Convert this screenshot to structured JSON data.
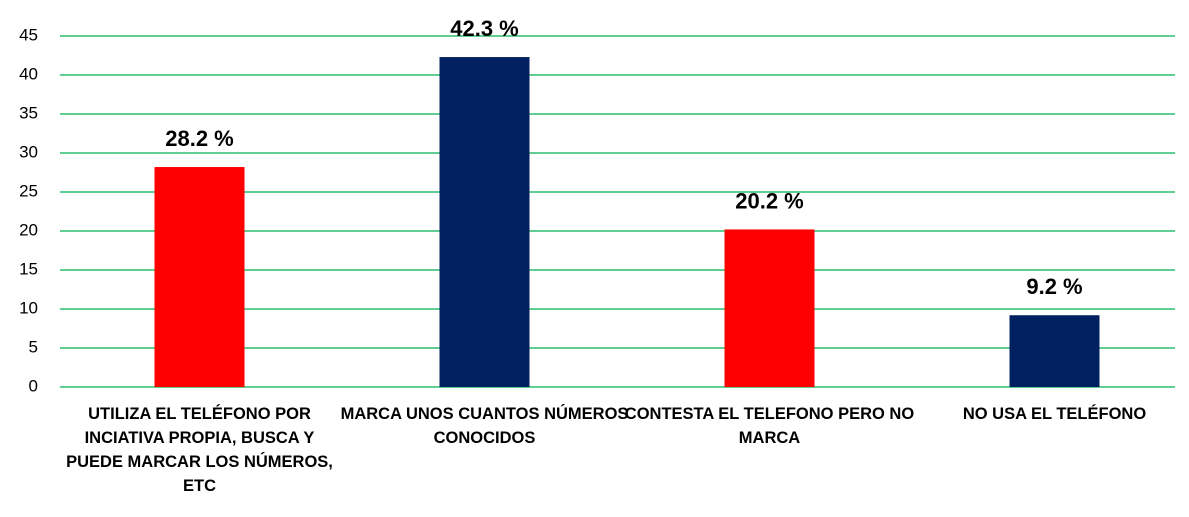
{
  "chart_data": {
    "type": "bar",
    "categories": [
      "UTILIZA EL TELÉFONO POR INCIATIVA PROPIA, BUSCA Y PUEDE MARCAR LOS NÚMEROS, ETC",
      "MARCA UNOS CUANTOS NÚMEROS CONOCIDOS",
      "CONTESTA EL TELEFONO PERO NO MARCA",
      "NO USA EL TELÉFONO"
    ],
    "values": [
      28.2,
      42.3,
      20.2,
      9.2
    ],
    "value_labels": [
      "28.2 %",
      "42.3 %",
      "20.2 %",
      "9.2 %"
    ],
    "colors": [
      "#ff0000",
      "#002060",
      "#ff0000",
      "#002060"
    ],
    "ylim": [
      0,
      45
    ],
    "yticks": [
      0,
      5,
      10,
      15,
      20,
      25,
      30,
      35,
      40,
      45
    ],
    "grid": true,
    "grid_color": "#00b050"
  }
}
